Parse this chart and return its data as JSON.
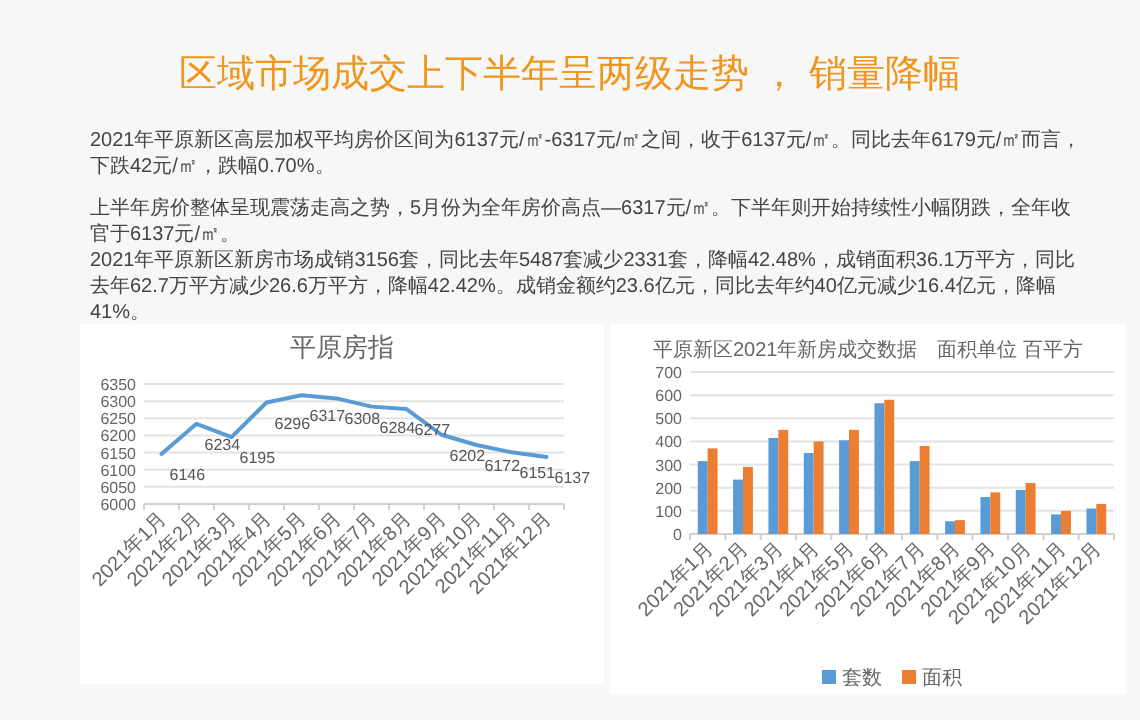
{
  "chart_data": [
    {
      "type": "other",
      "title": "区域市场成交上下半年呈两级走势 ， 销量降幅",
      "annotations": [
        "2021年平原新区高层加权平均房价区间为6137元/㎡-6317元/㎡之间，收于6137元/㎡。同比去年6179元/㎡而言，下跌42元/㎡，跌幅0.70%。",
        "上半年房价整体呈现震荡走高之势，5月份为全年房价高点—6317元/㎡。下半年则开始持续性小幅阴跌，全年收官于6137元/㎡。",
        "2021年平原新区新房市场成销3156套，同比去年5487套减少2331套，降幅42.48%，成销面积36.1万平方，同比去年62.7万平方减少26.6万平方，降幅42.42%。成销金额约23.6亿元，同比去年约40亿元减少16.4亿元，降幅41%。"
      ]
    },
    {
      "type": "line",
      "title": "平原房指",
      "categories": [
        "2021年1月",
        "2021年2月",
        "2021年3月",
        "2021年4月",
        "2021年5月",
        "2021年6月",
        "2021年7月",
        "2021年8月",
        "2021年9月",
        "2021年10月",
        "2021年11月",
        "2021年12月"
      ],
      "series": [
        {
          "color": "#5b9bd5",
          "values": [
            6146,
            6234,
            6195,
            6296,
            6317,
            6308,
            6284,
            6277,
            6202,
            6172,
            6151,
            6137
          ]
        }
      ],
      "ylim": [
        6000,
        6350
      ],
      "yticks": [
        6000,
        6050,
        6100,
        6150,
        6200,
        6250,
        6300,
        6350
      ],
      "grid": "y",
      "data_labels": true,
      "marker": "none",
      "line_style": "solid"
    },
    {
      "type": "bar",
      "title": "平原新区2021年新房成交数据　面积单位 百平方",
      "categories": [
        "2021年1月",
        "2021年2月",
        "2021年3月",
        "2021年4月",
        "2021年5月",
        "2021年6月",
        "2021年7月",
        "2021年8月",
        "2021年9月",
        "2021年10月",
        "2021年11月",
        "2021年12月"
      ],
      "series": [
        {
          "name": "套数",
          "color": "#5b9bd5",
          "values": [
            315,
            235,
            415,
            350,
            405,
            565,
            315,
            55,
            160,
            190,
            85,
            110
          ]
        },
        {
          "name": "面积",
          "color": "#ed7d31",
          "values": [
            370,
            290,
            450,
            400,
            450,
            580,
            380,
            60,
            180,
            220,
            100,
            130
          ]
        }
      ],
      "ylim": [
        0,
        700
      ],
      "yticks": [
        0,
        100,
        200,
        300,
        400,
        500,
        600,
        700
      ],
      "grid": "y",
      "legend": "bottom"
    }
  ]
}
